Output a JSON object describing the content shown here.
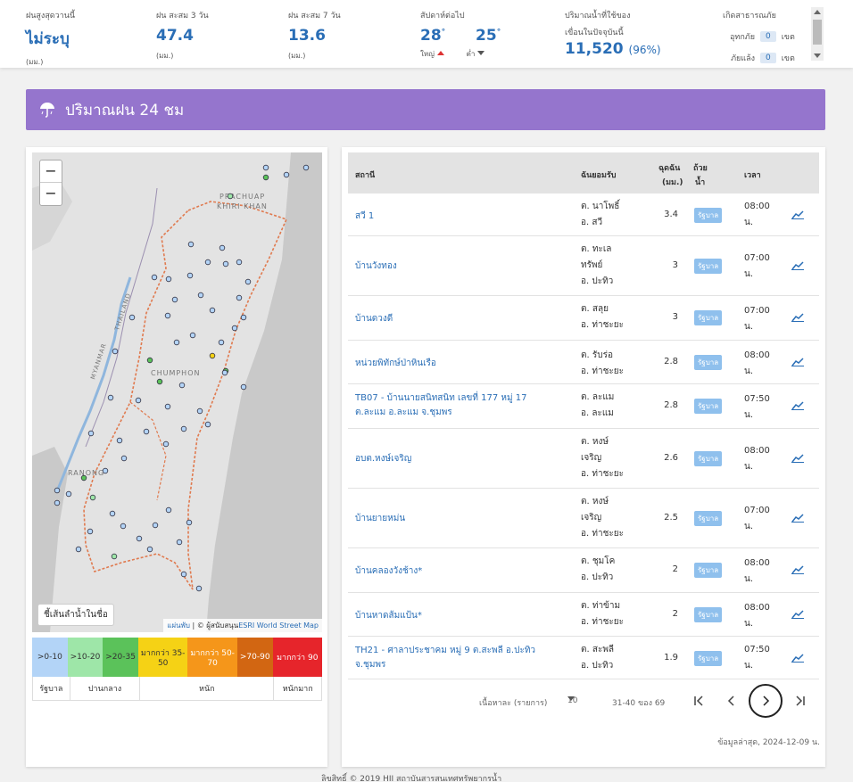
{
  "stats": {
    "max_rain": {
      "label": "ฝนสูงสุดวานนี้",
      "value": "ไม่ระบุ",
      "unit": "(มม.)"
    },
    "rain3": {
      "label": "ฝน สะสม 3 วัน",
      "value": "47.4",
      "unit": "(มม.)"
    },
    "rain7": {
      "label": "ฝน สะสม 7 วัน",
      "value": "13.6",
      "unit": "(มม.)"
    },
    "forecast": {
      "label": "สัปดาห์ต่อไป",
      "high": "28",
      "low": "25",
      "deg": "°",
      "high_label": "ใหญ่",
      "low_label": "ต่ำ"
    },
    "dam": {
      "label1": "ปริมาณน้ำที่ใช้ของ",
      "label2": "เขื่อนในปัจจุบันนี้",
      "value": "11,520",
      "pct": "(96%)"
    },
    "disaster": {
      "label": "เกิดสาธารณภัย",
      "flood_label": "อุทกภัย",
      "flood_value": "0",
      "drought_label": "ภัยแล้ง",
      "drought_value": "0",
      "unit": "เขต"
    }
  },
  "banner": {
    "title": "ปริมาณฝน 24 ชม",
    "icon": "umbrella-icon"
  },
  "map": {
    "zoom_in": "−",
    "zoom_out": "−",
    "river_button": "ชี้เส้นลำน้ำในชื่อ",
    "attrib_link1": "แผ่นพับ",
    "attrib_text": " | © ผู้สนับสนุน",
    "attrib_link2": "ESRI World Street Map",
    "labels": {
      "prachuap": "PRACHUAP",
      "khiri": "KHIRI KHAN",
      "myanmar": "MYANMAR",
      "thailand": "THAILAND",
      "chumphon": "CHUMPHON",
      "ranong": "RANONG"
    }
  },
  "legend": {
    "items": [
      {
        "label": ">0-10",
        "color": "#b3d4f7"
      },
      {
        "label": ">10-20",
        "color": "#9ee6a8"
      },
      {
        "label": ">20-35",
        "color": "#5bc25a"
      },
      {
        "label": "มากกว่า 35-50",
        "color": "#f5d215"
      },
      {
        "label": "มากกว่า 50-70",
        "color": "#f5961a"
      },
      {
        "label": ">70-90",
        "color": "#d26612"
      },
      {
        "label": "มากกว่า 90",
        "color": "#e6252b"
      }
    ],
    "levels": [
      "รัฐบาล",
      "ปานกลาง",
      "หนัก",
      "หนักมาก"
    ]
  },
  "table": {
    "headers": {
      "station": "สถานี",
      "agency": "ฉันยอมรับ",
      "rain1": "ฉุดฉัน",
      "rain2": "(มม.)",
      "water1": "ถ้วย",
      "water2": "น้ำ",
      "time": "เวลา"
    },
    "rows": [
      {
        "station": "สวี 1",
        "agency": "ต. นาโพธิ์\nอ. สวี",
        "rain": "3.4",
        "badge": "รัฐบาล",
        "time": "08:00\nน."
      },
      {
        "station": "บ้านวังทอง",
        "agency": "ต. ทะเล\nทรัพย์\nอ. ปะทิว",
        "rain": "3",
        "badge": "รัฐบาล",
        "time": "07:00\nน."
      },
      {
        "station": "บ้านดวงดี",
        "agency": "ต. สลุย\nอ. ท่าชะยะ",
        "rain": "3",
        "badge": "รัฐบาล",
        "time": "07:00\nน."
      },
      {
        "station": "หน่วยพิทักษ์ป่าหินเรือ",
        "agency": "ต. รับร่อ\nอ. ท่าชะยะ",
        "rain": "2.8",
        "badge": "รัฐบาล",
        "time": "08:00\nน."
      },
      {
        "station": "TB07 - บ้านนายสนิทสนิท เลขที่ 177 หมู่ 17\nต.ละแม อ.ละแม จ.ชุมพร",
        "agency": "ต. ละแม\nอ. ละแม",
        "rain": "2.8",
        "badge": "รัฐบาล",
        "time": "07:50\nน."
      },
      {
        "station": "อบต.หงษ์เจริญ",
        "agency": "ต. หงษ์\nเจริญ\nอ. ท่าชะยะ",
        "rain": "2.6",
        "badge": "รัฐบาล",
        "time": "08:00\nน."
      },
      {
        "station": "บ้านยายหม่น",
        "agency": "ต. หงษ์\nเจริญ\nอ. ท่าชะยะ",
        "rain": "2.5",
        "badge": "รัฐบาล",
        "time": "07:00\nน."
      },
      {
        "station": "บ้านคลองวังช้าง*",
        "agency": "ต. ชุมโค\nอ. ปะทิว",
        "rain": "2",
        "badge": "รัฐบาล",
        "time": "08:00\nน."
      },
      {
        "station": "บ้านหาดส้มแป้น*",
        "agency": "ต. ท่าข้าม\nอ. ท่าชะยะ",
        "rain": "2",
        "badge": "รัฐบาล",
        "time": "08:00\nน."
      },
      {
        "station": "TH21 - ศาลาประชาคม หมู่ 9 ต.สะพลี อ.ปะทิว\nจ.ชุมพร",
        "agency": "ต. สะพลี\nอ. ปะทิว",
        "rain": "1.9",
        "badge": "รัฐบาล",
        "time": "07:50\nน."
      }
    ],
    "pager": {
      "per_page_label": "เนื้อหาละ (รายการ)",
      "per_page": "10",
      "range": "31-40 ของ 69",
      "first": "|<",
      "prev": "<",
      "next": ">",
      "last": ">|"
    },
    "updated": "ข้อมูลล่าสุด, 2024-12-09 น."
  },
  "footer": {
    "text": "ลิขสิทธิ์ © 2019 HII สถาบันสารสนเทศทรัพยากรน้ำ"
  }
}
